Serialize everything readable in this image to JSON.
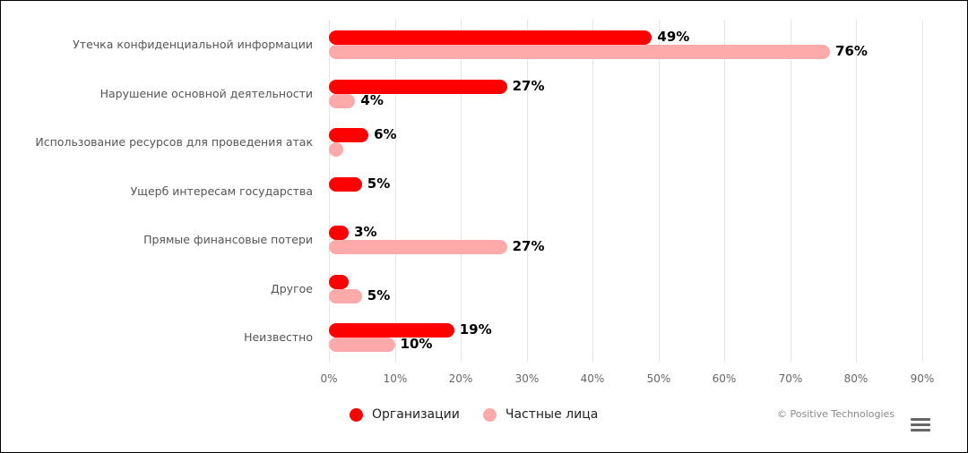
{
  "chart_data": {
    "type": "bar",
    "orientation": "horizontal",
    "title": "",
    "xlabel": "",
    "ylabel": "",
    "xlim": [
      0,
      90
    ],
    "x_ticks": [
      "0%",
      "10%",
      "20%",
      "30%",
      "40%",
      "50%",
      "60%",
      "70%",
      "80%",
      "90%"
    ],
    "grid": true,
    "legend_position": "bottom",
    "categories": [
      "Утечка конфиденциальной информации",
      "Нарушение основной деятельности",
      "Использование ресурсов для проведения атак",
      "Ущерб интересам государства",
      "Прямые финансовые потери",
      "Другое",
      "Неизвестно"
    ],
    "series": [
      {
        "name": "Организации",
        "color": "#ff0000",
        "values": [
          49,
          27,
          6,
          5,
          3,
          3,
          19
        ],
        "labels": [
          "49%",
          "27%",
          "6%",
          "5%",
          "3%",
          "",
          "19%"
        ]
      },
      {
        "name": "Частные лица",
        "color": "#ffaaaa",
        "values": [
          76,
          4,
          1,
          0,
          27,
          5,
          10
        ],
        "labels": [
          "76%",
          "4%",
          "",
          "",
          "27%",
          "5%",
          "10%"
        ]
      }
    ]
  },
  "legend": {
    "items": [
      {
        "label": "Организации",
        "color": "#ff0000"
      },
      {
        "label": "Частные лица",
        "color": "#ffaaaa"
      }
    ]
  },
  "credit": "© Positive Technologies",
  "menu_icon": "hamburger-menu-icon"
}
